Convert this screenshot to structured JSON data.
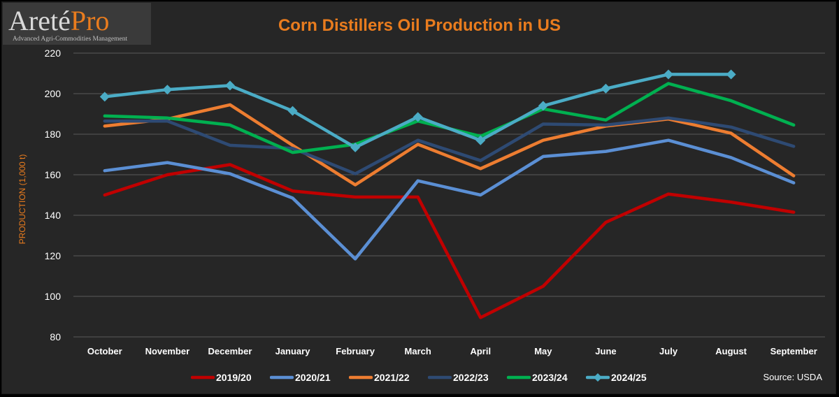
{
  "logo": {
    "brand": "Areté",
    "brand_accent": "Pro",
    "tagline": "Advanced Agri-Commodities Management"
  },
  "source": "Source: USDA",
  "chart_data": {
    "type": "line",
    "title": "Corn Distillers Oil Production in US",
    "xlabel": "",
    "ylabel": "PRODUCTION (1,000 t)",
    "ylim": [
      80,
      220
    ],
    "yticks": [
      80,
      100,
      120,
      140,
      160,
      180,
      200,
      220
    ],
    "grid": true,
    "legend_position": "bottom",
    "categories": [
      "October",
      "November",
      "December",
      "January",
      "February",
      "March",
      "April",
      "May",
      "June",
      "July",
      "August",
      "September"
    ],
    "series": [
      {
        "name": "2019/20",
        "color": "#c00000",
        "markers": false,
        "values": [
          150,
          160,
          165,
          152,
          149,
          149,
          89.5,
          105,
          136.5,
          150.5,
          146.5,
          141.5
        ]
      },
      {
        "name": "2020/21",
        "color": "#5b8fd4",
        "markers": false,
        "values": [
          162,
          166,
          160.5,
          148.5,
          118.5,
          157,
          150,
          169,
          171.5,
          177,
          168.5,
          156
        ]
      },
      {
        "name": "2021/22",
        "color": "#ed7d31",
        "markers": false,
        "values": [
          184,
          187.5,
          194.5,
          174.5,
          155,
          175,
          163,
          177,
          184,
          187.5,
          180.5,
          159.5
        ]
      },
      {
        "name": "2022/23",
        "color": "#2e4a73",
        "markers": false,
        "values": [
          186.5,
          186.5,
          174.5,
          173,
          160.5,
          177,
          167,
          185,
          184.5,
          188,
          183.5,
          174
        ]
      },
      {
        "name": "2023/24",
        "color": "#00b050",
        "markers": false,
        "values": [
          189,
          188,
          184.5,
          171,
          175,
          186.5,
          179,
          192.5,
          187,
          205,
          196.5,
          184.5
        ]
      },
      {
        "name": "2024/25",
        "color": "#4bacc6",
        "markers": true,
        "values": [
          198.5,
          202,
          204,
          191.5,
          173.5,
          188.5,
          177,
          194,
          202.5,
          209.5,
          209.5,
          null
        ]
      }
    ]
  }
}
